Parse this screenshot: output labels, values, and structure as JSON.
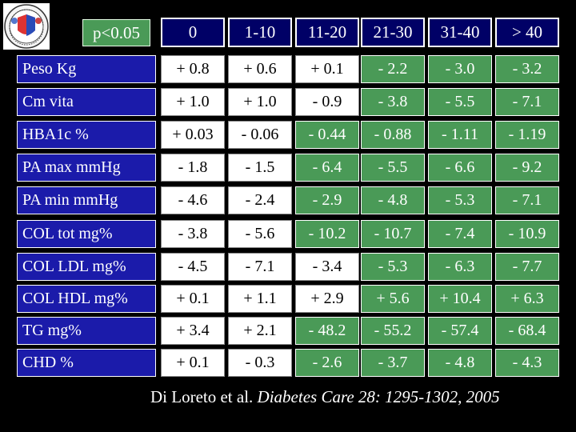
{
  "significance_label": "p<0.05",
  "columns": [
    "0",
    "1-10",
    "11-20",
    "21-30",
    "31-40",
    "> 40"
  ],
  "rows": [
    {
      "label": "Peso Kg",
      "values": [
        "+ 0.8",
        "+ 0.6",
        "+ 0.1",
        "- 2.2",
        "- 3.0",
        "- 3.2"
      ],
      "significant": [
        false,
        false,
        false,
        true,
        true,
        true
      ]
    },
    {
      "label": "Cm vita",
      "values": [
        "+ 1.0",
        "+ 1.0",
        "- 0.9",
        "- 3.8",
        "- 5.5",
        "- 7.1"
      ],
      "significant": [
        false,
        false,
        false,
        true,
        true,
        true
      ]
    },
    {
      "label": "HBA1c %",
      "values": [
        "+ 0.03",
        "- 0.06",
        "- 0.44",
        "- 0.88",
        "- 1.11",
        "- 1.19"
      ],
      "significant": [
        false,
        false,
        true,
        true,
        true,
        true
      ]
    },
    {
      "label": "PA max mmHg",
      "values": [
        "- 1.8",
        "- 1.5",
        "- 6.4",
        "- 5.5",
        "- 6.6",
        "- 9.2"
      ],
      "significant": [
        false,
        false,
        true,
        true,
        true,
        true
      ]
    },
    {
      "label": "PA min mmHg",
      "values": [
        "- 4.6",
        "- 2.4",
        "- 2.9",
        "- 4.8",
        "- 5.3",
        "- 7.1"
      ],
      "significant": [
        false,
        false,
        true,
        true,
        true,
        true
      ]
    },
    {
      "label": "COL tot mg%",
      "values": [
        "- 3.8",
        "- 5.6",
        "- 10.2",
        "- 10.7",
        "- 7.4",
        "- 10.9"
      ],
      "significant": [
        false,
        false,
        true,
        true,
        true,
        true
      ]
    },
    {
      "label": "COL LDL mg%",
      "values": [
        "- 4.5",
        "- 7.1",
        "- 3.4",
        "- 5.3",
        "- 6.3",
        "- 7.7"
      ],
      "significant": [
        false,
        false,
        false,
        true,
        true,
        true
      ]
    },
    {
      "label": "COL HDL mg%",
      "values": [
        "+ 0.1",
        "+ 1.1",
        "+ 2.9",
        "+ 5.6",
        "+ 10.4",
        "+ 6.3"
      ],
      "significant": [
        false,
        false,
        false,
        true,
        true,
        true
      ]
    },
    {
      "label": "TG mg%",
      "values": [
        "+ 3.4",
        "+ 2.1",
        "- 48.2",
        "- 55.2",
        "- 57.4",
        "- 68.4"
      ],
      "significant": [
        false,
        false,
        true,
        true,
        true,
        true
      ]
    },
    {
      "label": "CHD %",
      "values": [
        "+ 0.1",
        "- 0.3",
        "- 2.6",
        "- 3.7",
        "- 4.8",
        "- 4.3"
      ],
      "significant": [
        false,
        false,
        true,
        true,
        true,
        true
      ]
    }
  ],
  "citation": {
    "authors": "Di Loreto et al.",
    "journal": "Diabetes Care 28: 1295-1302, 2005"
  },
  "colors": {
    "significant": "#4a9a57",
    "not_significant": "#ffffff",
    "header": "#000066",
    "row_label": "#1b1baa"
  }
}
